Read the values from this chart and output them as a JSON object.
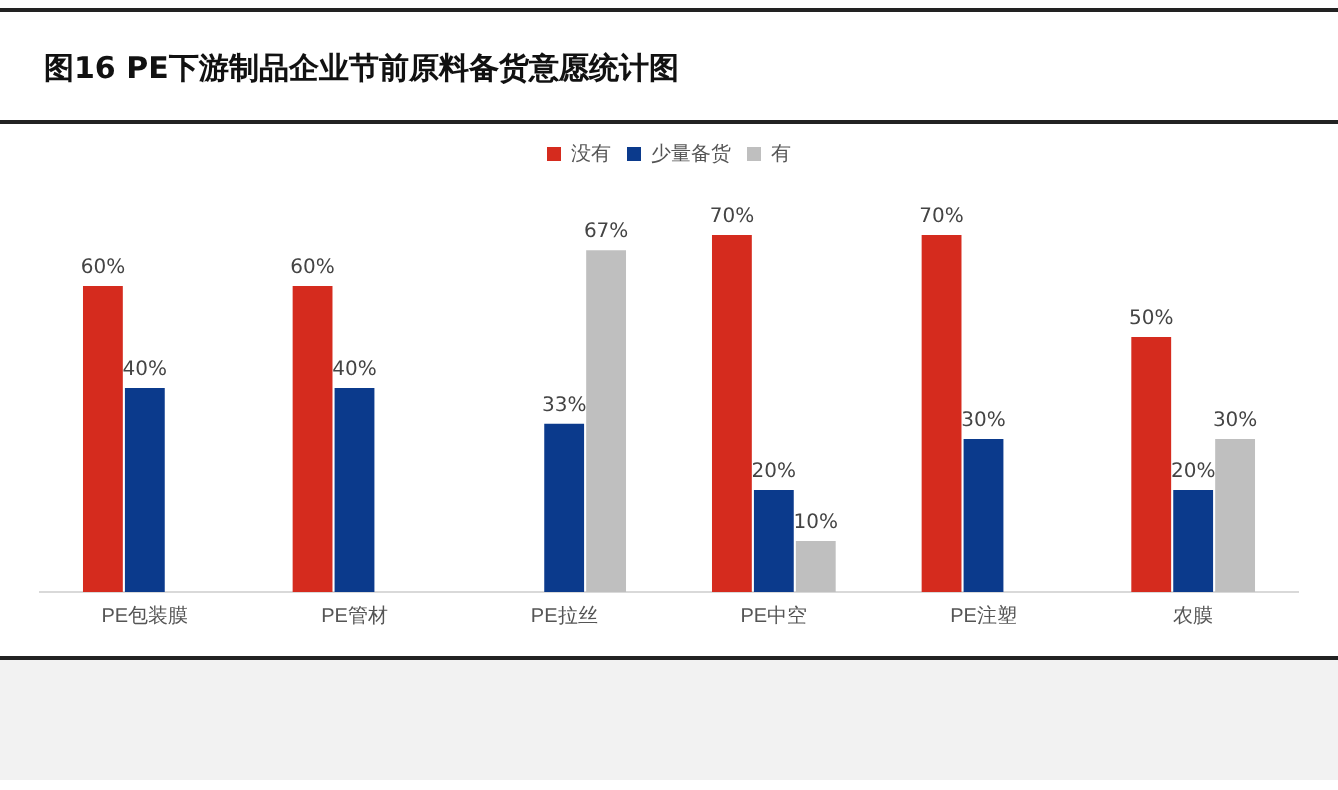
{
  "chart_data": {
    "type": "bar",
    "title": "图16  PE下游制品企业节前原料备货意愿统计图",
    "categories": [
      "PE包装膜",
      "PE管材",
      "PE拉丝",
      "PE中空",
      "PE注塑",
      "农膜"
    ],
    "series": [
      {
        "name": "没有",
        "color": "#d52b1e",
        "values": [
          60,
          60,
          null,
          70,
          70,
          50
        ],
        "value_labels": [
          "60%",
          "60%",
          null,
          "70%",
          "70%",
          "50%"
        ]
      },
      {
        "name": "少量备货",
        "color": "#0b3a8c",
        "values": [
          40,
          40,
          33,
          20,
          30,
          20
        ],
        "value_labels": [
          "40%",
          "40%",
          "33%",
          "20%",
          "30%",
          "20%"
        ]
      },
      {
        "name": "有",
        "color": "#bfbfbf",
        "values": [
          null,
          null,
          67,
          10,
          null,
          30
        ],
        "value_labels": [
          null,
          null,
          "67%",
          "10%",
          null,
          "30%"
        ]
      }
    ],
    "grid": false,
    "legend": "top"
  }
}
